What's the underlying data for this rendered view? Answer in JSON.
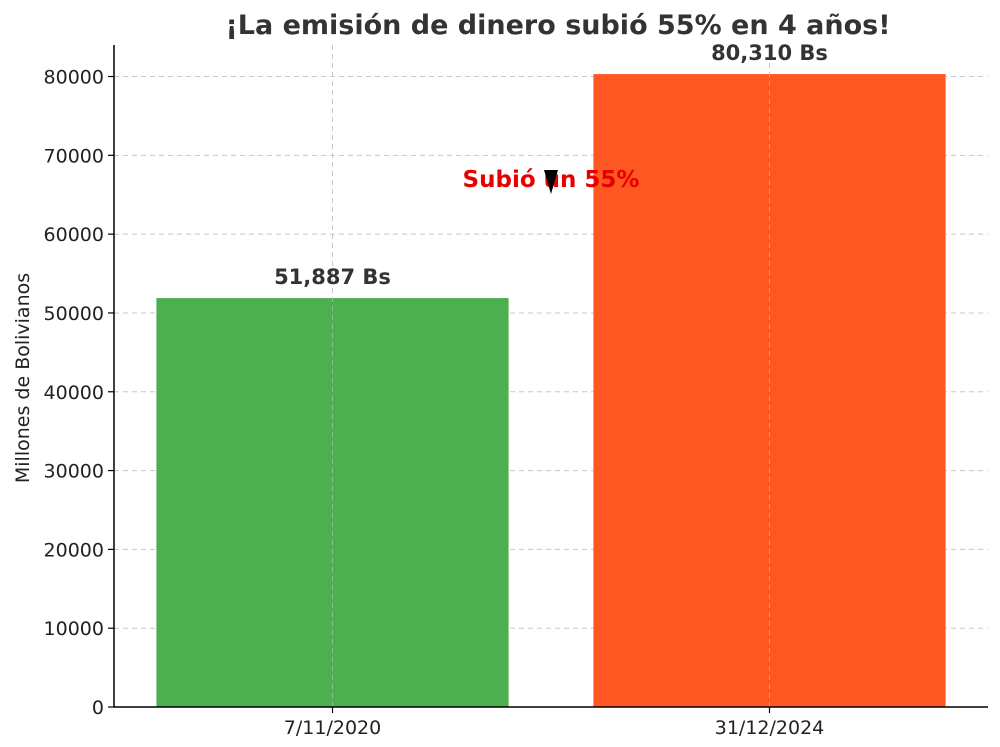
{
  "chart_data": {
    "type": "bar",
    "title": "¡La emisión de dinero subió 55% en 4 años!",
    "xlabel": "",
    "ylabel": "Millones de Bolivianos",
    "categories": [
      "7/11/2020",
      "31/12/2024"
    ],
    "values": [
      51887,
      80310
    ],
    "bar_labels": [
      "51,887 Bs",
      "80,310 Bs"
    ],
    "bar_colors": [
      "#4caf50",
      "#ff5722"
    ],
    "ylim": [
      0,
      84000
    ],
    "yticks": [
      0,
      10000,
      20000,
      30000,
      40000,
      50000,
      60000,
      70000,
      80000
    ],
    "grid": true,
    "annotation": {
      "text": "Subió un 55%",
      "color": "#e60000",
      "arrow_color": "#000000",
      "near_value": 67000
    }
  }
}
